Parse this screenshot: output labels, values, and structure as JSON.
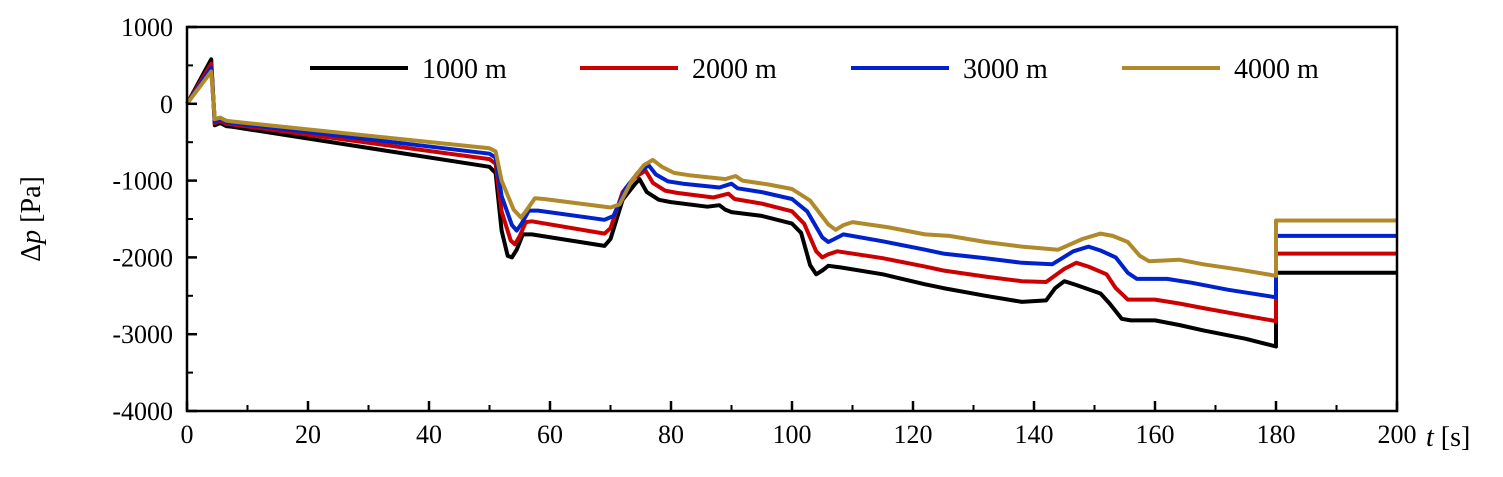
{
  "chart_data": {
    "type": "line",
    "title": "",
    "xlabel_var": "t",
    "xlabel_unit": "[s]",
    "ylabel_var": "p",
    "ylabel_prefix": "Δ",
    "ylabel_unit": "[Pa]",
    "xlim": [
      0,
      200
    ],
    "ylim": [
      -4000,
      1000
    ],
    "xticks": [
      0,
      20,
      40,
      60,
      80,
      100,
      120,
      140,
      160,
      180,
      200
    ],
    "yticks": [
      1000,
      0,
      -1000,
      -2000,
      -3000,
      -4000
    ],
    "ytick_labels": [
      "1000",
      "0",
      "-1000",
      "-2000",
      "-3000",
      "-4000"
    ],
    "legend_position": "top",
    "grid": false,
    "series": [
      {
        "name": "1000 m",
        "color": "#000000",
        "points": [
          [
            0,
            0
          ],
          [
            4,
            580
          ],
          [
            4.6,
            -280
          ],
          [
            5.5,
            -250
          ],
          [
            6.5,
            -290
          ],
          [
            7.5,
            -300
          ],
          [
            50,
            -820
          ],
          [
            51,
            -900
          ],
          [
            52,
            -1650
          ],
          [
            53,
            -1980
          ],
          [
            53.7,
            -2000
          ],
          [
            54.5,
            -1900
          ],
          [
            55.5,
            -1700
          ],
          [
            57,
            -1700
          ],
          [
            69,
            -1850
          ],
          [
            70,
            -1760
          ],
          [
            72,
            -1250
          ],
          [
            74,
            -1050
          ],
          [
            74.8,
            -980
          ],
          [
            76,
            -1150
          ],
          [
            78,
            -1250
          ],
          [
            80,
            -1280
          ],
          [
            86,
            -1340
          ],
          [
            88,
            -1320
          ],
          [
            89,
            -1380
          ],
          [
            90,
            -1410
          ],
          [
            95,
            -1460
          ],
          [
            100,
            -1560
          ],
          [
            101.5,
            -1680
          ],
          [
            103,
            -2100
          ],
          [
            104,
            -2220
          ],
          [
            105,
            -2170
          ],
          [
            106,
            -2110
          ],
          [
            108,
            -2130
          ],
          [
            115,
            -2220
          ],
          [
            122,
            -2350
          ],
          [
            125,
            -2400
          ],
          [
            132,
            -2500
          ],
          [
            138,
            -2580
          ],
          [
            142,
            -2560
          ],
          [
            143.5,
            -2400
          ],
          [
            145,
            -2310
          ],
          [
            147,
            -2360
          ],
          [
            151,
            -2470
          ],
          [
            152.5,
            -2600
          ],
          [
            154.5,
            -2800
          ],
          [
            156,
            -2820
          ],
          [
            160,
            -2820
          ],
          [
            164,
            -2880
          ],
          [
            168,
            -2950
          ],
          [
            175,
            -3060
          ],
          [
            178,
            -3120
          ],
          [
            180,
            -3160
          ],
          [
            180,
            -2200
          ],
          [
            200,
            -2200
          ]
        ]
      },
      {
        "name": "2000 m",
        "color": "#cc0000",
        "points": [
          [
            0,
            0
          ],
          [
            4,
            520
          ],
          [
            4.6,
            -250
          ],
          [
            5.5,
            -220
          ],
          [
            6.5,
            -260
          ],
          [
            7.5,
            -270
          ],
          [
            50,
            -720
          ],
          [
            51,
            -780
          ],
          [
            52,
            -1400
          ],
          [
            53.5,
            -1780
          ],
          [
            54.2,
            -1830
          ],
          [
            55,
            -1720
          ],
          [
            56,
            -1540
          ],
          [
            57,
            -1530
          ],
          [
            69,
            -1690
          ],
          [
            70,
            -1620
          ],
          [
            72,
            -1150
          ],
          [
            74,
            -960
          ],
          [
            75.8,
            -870
          ],
          [
            77,
            -1030
          ],
          [
            79,
            -1130
          ],
          [
            81,
            -1160
          ],
          [
            87,
            -1220
          ],
          [
            89.5,
            -1170
          ],
          [
            90.5,
            -1240
          ],
          [
            95,
            -1300
          ],
          [
            100,
            -1400
          ],
          [
            102,
            -1560
          ],
          [
            104,
            -1920
          ],
          [
            105,
            -2000
          ],
          [
            106,
            -1960
          ],
          [
            107.5,
            -1920
          ],
          [
            115,
            -2010
          ],
          [
            122,
            -2120
          ],
          [
            125,
            -2170
          ],
          [
            132,
            -2250
          ],
          [
            138,
            -2310
          ],
          [
            142,
            -2320
          ],
          [
            145,
            -2150
          ],
          [
            147,
            -2070
          ],
          [
            149,
            -2120
          ],
          [
            152,
            -2220
          ],
          [
            153.5,
            -2400
          ],
          [
            155.5,
            -2550
          ],
          [
            157,
            -2550
          ],
          [
            160,
            -2550
          ],
          [
            164,
            -2600
          ],
          [
            168,
            -2660
          ],
          [
            175,
            -2760
          ],
          [
            180,
            -2830
          ],
          [
            180,
            -1950
          ],
          [
            200,
            -1950
          ]
        ]
      },
      {
        "name": "3000 m",
        "color": "#0022cc",
        "points": [
          [
            0,
            0
          ],
          [
            4,
            470
          ],
          [
            4.6,
            -230
          ],
          [
            5.5,
            -200
          ],
          [
            6.5,
            -240
          ],
          [
            7.5,
            -250
          ],
          [
            50,
            -650
          ],
          [
            51,
            -700
          ],
          [
            52,
            -1200
          ],
          [
            53.7,
            -1580
          ],
          [
            54.5,
            -1650
          ],
          [
            55.3,
            -1560
          ],
          [
            56.5,
            -1390
          ],
          [
            58,
            -1390
          ],
          [
            69,
            -1510
          ],
          [
            70.5,
            -1460
          ],
          [
            72.5,
            -1100
          ],
          [
            74.5,
            -900
          ],
          [
            76.3,
            -800
          ],
          [
            77.5,
            -920
          ],
          [
            79.5,
            -1010
          ],
          [
            82,
            -1040
          ],
          [
            88,
            -1090
          ],
          [
            90,
            -1040
          ],
          [
            91,
            -1100
          ],
          [
            95,
            -1150
          ],
          [
            100,
            -1240
          ],
          [
            102.5,
            -1400
          ],
          [
            105,
            -1740
          ],
          [
            106,
            -1800
          ],
          [
            107,
            -1760
          ],
          [
            108.5,
            -1700
          ],
          [
            115,
            -1790
          ],
          [
            122,
            -1900
          ],
          [
            125,
            -1950
          ],
          [
            132,
            -2010
          ],
          [
            138,
            -2070
          ],
          [
            143,
            -2090
          ],
          [
            146.5,
            -1920
          ],
          [
            149,
            -1860
          ],
          [
            151,
            -1910
          ],
          [
            153.5,
            -2000
          ],
          [
            155.5,
            -2200
          ],
          [
            157,
            -2280
          ],
          [
            162,
            -2280
          ],
          [
            166,
            -2330
          ],
          [
            172,
            -2420
          ],
          [
            180,
            -2520
          ],
          [
            180,
            -1720
          ],
          [
            200,
            -1720
          ]
        ]
      },
      {
        "name": "4000 m",
        "color": "#b08a2a",
        "points": [
          [
            0,
            0
          ],
          [
            4,
            420
          ],
          [
            4.6,
            -200
          ],
          [
            5.5,
            -180
          ],
          [
            6.5,
            -220
          ],
          [
            7.5,
            -230
          ],
          [
            50,
            -580
          ],
          [
            51,
            -620
          ],
          [
            52,
            -1000
          ],
          [
            54,
            -1380
          ],
          [
            55.2,
            -1480
          ],
          [
            56,
            -1400
          ],
          [
            57.5,
            -1230
          ],
          [
            59,
            -1240
          ],
          [
            70,
            -1350
          ],
          [
            71.5,
            -1310
          ],
          [
            73.5,
            -1000
          ],
          [
            75.5,
            -800
          ],
          [
            77,
            -730
          ],
          [
            78.5,
            -820
          ],
          [
            80.5,
            -900
          ],
          [
            83,
            -930
          ],
          [
            89,
            -980
          ],
          [
            90.7,
            -940
          ],
          [
            91.8,
            -1000
          ],
          [
            96,
            -1050
          ],
          [
            100,
            -1110
          ],
          [
            103,
            -1260
          ],
          [
            106,
            -1570
          ],
          [
            107.2,
            -1640
          ],
          [
            108.5,
            -1580
          ],
          [
            110,
            -1540
          ],
          [
            116,
            -1610
          ],
          [
            122,
            -1700
          ],
          [
            126,
            -1720
          ],
          [
            132,
            -1800
          ],
          [
            138,
            -1860
          ],
          [
            144,
            -1900
          ],
          [
            148,
            -1760
          ],
          [
            151,
            -1690
          ],
          [
            153,
            -1720
          ],
          [
            155.5,
            -1800
          ],
          [
            157.5,
            -1980
          ],
          [
            159,
            -2050
          ],
          [
            164,
            -2030
          ],
          [
            168,
            -2090
          ],
          [
            174,
            -2160
          ],
          [
            180,
            -2240
          ],
          [
            180,
            -1520
          ],
          [
            200,
            -1520
          ]
        ]
      }
    ]
  }
}
